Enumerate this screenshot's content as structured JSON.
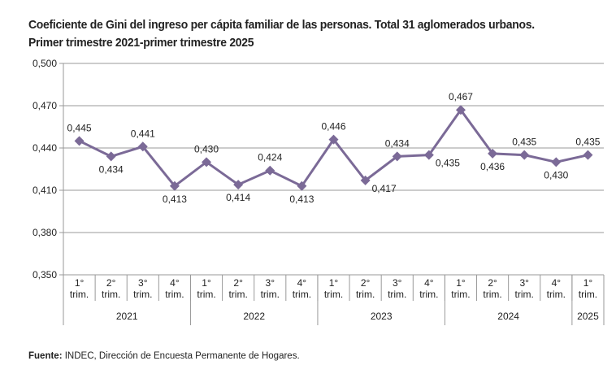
{
  "chart_data": {
    "type": "line",
    "title": "Coeficiente de Gini del ingreso per cápita familiar de las personas. Total 31 aglomerados urbanos.",
    "subtitle": "Primer trimestre 2021-primer trimestre 2025",
    "quarters": [
      "1°|trim.",
      "2°|trim.",
      "3°|trim.",
      "4°|trim.",
      "1°|trim.",
      "2°|trim.",
      "3°|trim.",
      "4°|trim.",
      "1°|trim.",
      "2°|trim.",
      "3°|trim.",
      "4°|trim.",
      "1°|trim.",
      "2°|trim.",
      "3°|trim.",
      "4°|trim.",
      "1°|trim."
    ],
    "years": [
      {
        "label": "2021",
        "span": 4
      },
      {
        "label": "2022",
        "span": 4
      },
      {
        "label": "2023",
        "span": 4
      },
      {
        "label": "2024",
        "span": 4
      },
      {
        "label": "2025",
        "span": 1
      }
    ],
    "values": [
      0.445,
      0.434,
      0.441,
      0.413,
      0.43,
      0.414,
      0.424,
      0.413,
      0.446,
      0.417,
      0.434,
      0.435,
      0.467,
      0.436,
      0.435,
      0.43,
      0.435
    ],
    "data_labels": [
      "0,445",
      "0,434",
      "0,441",
      "0,413",
      "0,430",
      "0,414",
      "0,424",
      "0,413",
      "0,446",
      "0,417",
      "0,434",
      "0,435",
      "0,467",
      "0,436",
      "0,435",
      "0,430",
      "0,435"
    ],
    "label_pos": [
      "above",
      "below",
      "above",
      "below",
      "above",
      "below",
      "above",
      "below",
      "above",
      "right",
      "above",
      "right",
      "above",
      "below",
      "above",
      "below",
      "above"
    ],
    "yticks": [
      "0,500",
      "0,470",
      "0,440",
      "0,410",
      "0,380",
      "0,350"
    ],
    "ytick_values": [
      0.5,
      0.47,
      0.44,
      0.41,
      0.38,
      0.35
    ],
    "ylim": [
      0.35,
      0.5
    ],
    "grid": true,
    "line_color": "#7b6a97"
  },
  "source_bold": "Fuente:",
  "source_text": " INDEC, Dirección de Encuesta Permanente de Hogares."
}
